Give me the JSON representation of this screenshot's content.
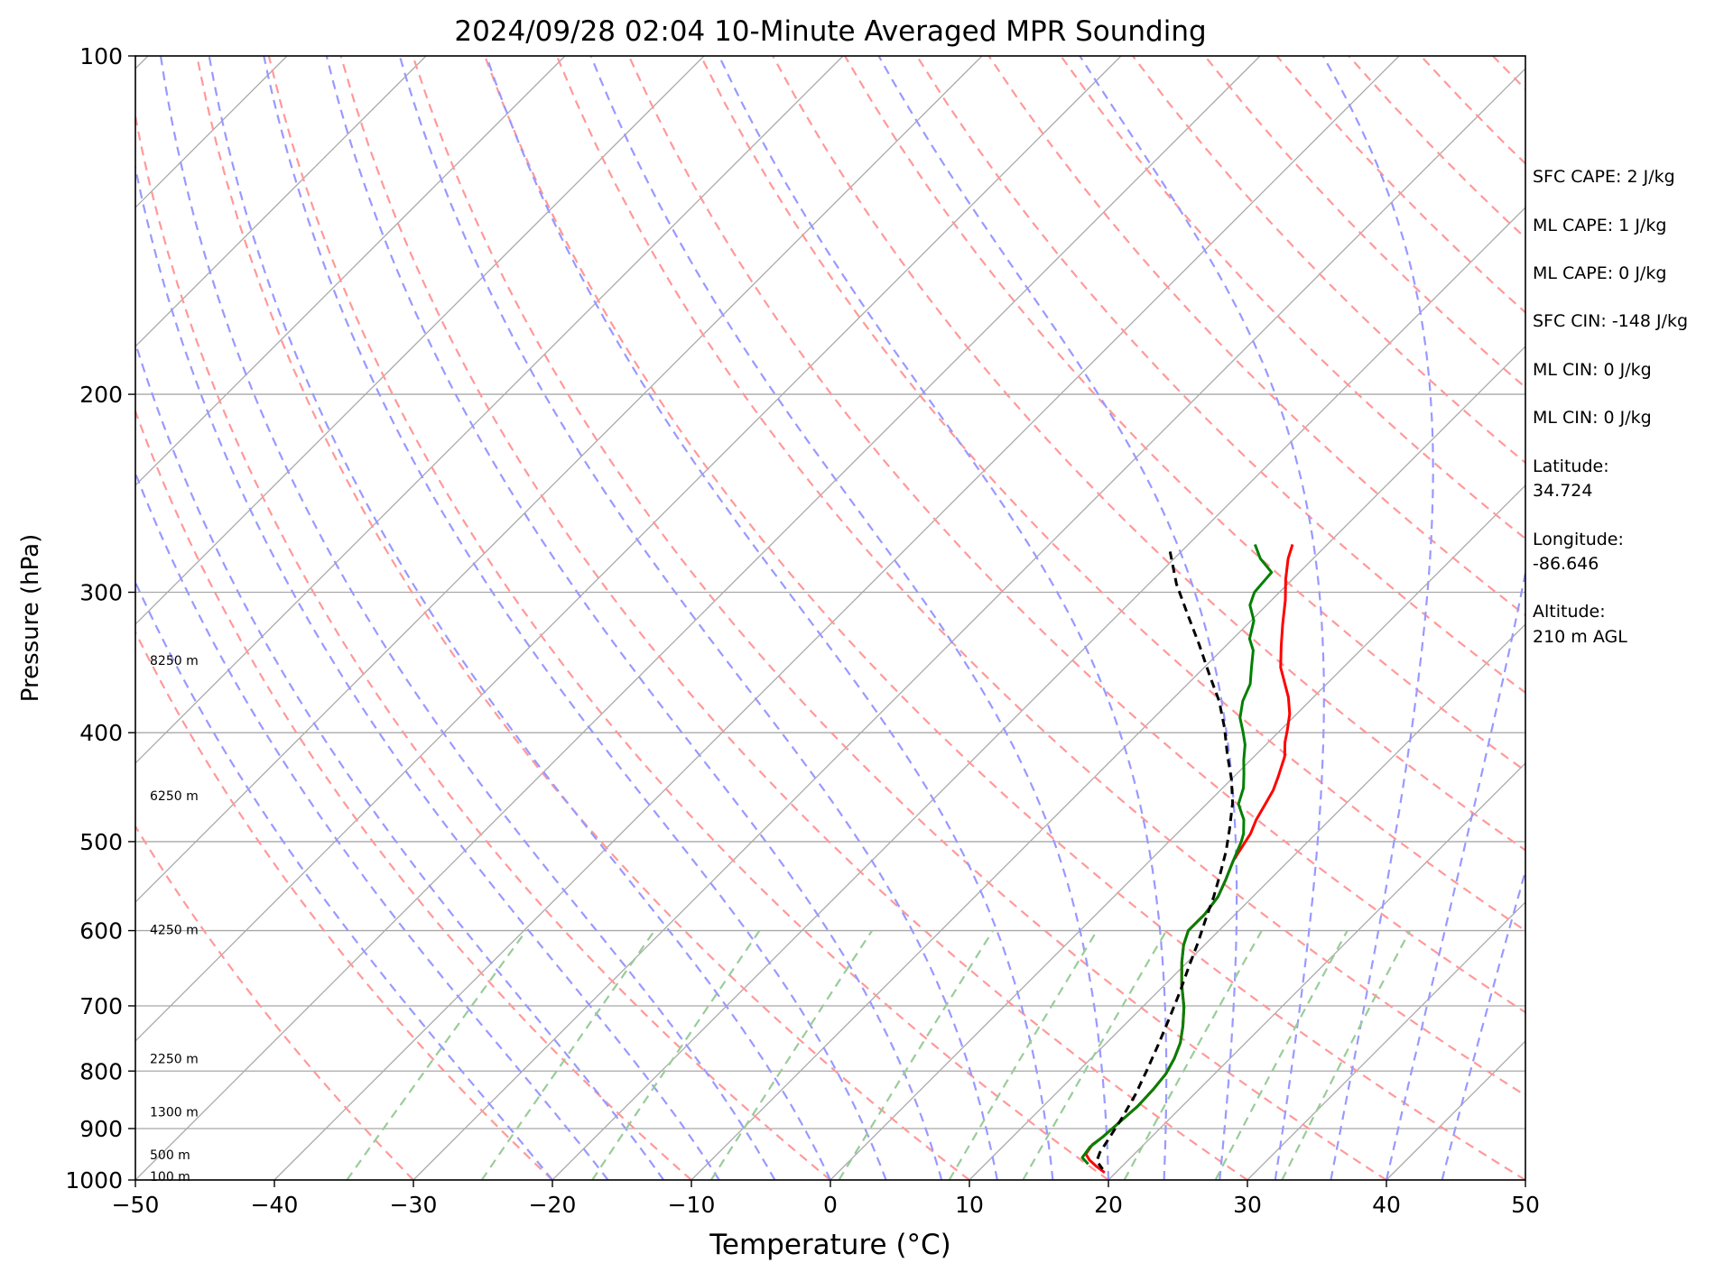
{
  "chart_data": {
    "type": "line",
    "title": "2024/09/28 02:04 10-Minute Averaged MPR Sounding",
    "xlabel": "Temperature (°C)",
    "ylabel": "Pressure (hPa)",
    "xlim": [
      -50,
      50
    ],
    "ylim": [
      1000,
      100
    ],
    "y_scale": "log",
    "skew": "skew-T log-p",
    "grid": true,
    "x_ticks": [
      -50,
      -40,
      -30,
      -20,
      -10,
      0,
      10,
      20,
      30,
      40,
      50
    ],
    "y_ticks": [
      100,
      200,
      300,
      400,
      500,
      600,
      700,
      800,
      900,
      1000
    ],
    "x_tick_labels": [
      "−50",
      "−40",
      "−30",
      "−20",
      "−10",
      "0",
      "10",
      "20",
      "30",
      "40",
      "50"
    ],
    "y_tick_labels": [
      "100",
      "200",
      "300",
      "400",
      "500",
      "600",
      "700",
      "800",
      "900",
      "1000"
    ],
    "height_labels": [
      {
        "label": "8250 m",
        "pressure": 345
      },
      {
        "label": "6250 m",
        "pressure": 455
      },
      {
        "label": "4250 m",
        "pressure": 599
      },
      {
        "label": "2250 m",
        "pressure": 780
      },
      {
        "label": "1300 m",
        "pressure": 870
      },
      {
        "label": "500 m",
        "pressure": 950
      },
      {
        "label": "100 m",
        "pressure": 993
      }
    ],
    "series": [
      {
        "color": "#ff0000",
        "points": [
          [
            -12.5,
            272
          ],
          [
            -11.8,
            280
          ],
          [
            -10.5,
            292
          ],
          [
            -9,
            305
          ],
          [
            -7.5,
            320
          ],
          [
            -6,
            335
          ],
          [
            -4.5,
            350
          ],
          [
            -3,
            362
          ],
          [
            -1.8,
            372
          ],
          [
            -0.5,
            385
          ],
          [
            0.5,
            398
          ],
          [
            1.2,
            408
          ],
          [
            2.2,
            420
          ],
          [
            3.2,
            438
          ],
          [
            3.8,
            450
          ],
          [
            4.2,
            462
          ],
          [
            4.7,
            478
          ],
          [
            5.3,
            492
          ],
          [
            5.5,
            500
          ],
          [
            6,
            520
          ],
          [
            6.8,
            540
          ],
          [
            7.5,
            560
          ],
          [
            7.8,
            580
          ],
          [
            7.8,
            600
          ],
          [
            8.5,
            618
          ],
          [
            9.6,
            640
          ],
          [
            11.2,
            670
          ],
          [
            13,
            702
          ],
          [
            14.3,
            730
          ],
          [
            15.3,
            755
          ],
          [
            16,
            780
          ],
          [
            16.5,
            805
          ],
          [
            16.7,
            830
          ],
          [
            16.8,
            860
          ],
          [
            16.6,
            895
          ],
          [
            16.5,
            915
          ],
          [
            16.3,
            930
          ],
          [
            16.5,
            948
          ],
          [
            17.2,
            960
          ],
          [
            18.2,
            973
          ],
          [
            19.2,
            985
          ]
        ]
      },
      {
        "color": "#008000",
        "points": [
          [
            -15.2,
            272
          ],
          [
            -13.8,
            280
          ],
          [
            -12,
            288
          ],
          [
            -11.8,
            300
          ],
          [
            -11.2,
            308
          ],
          [
            -9.8,
            318
          ],
          [
            -8.8,
            330
          ],
          [
            -7.7,
            338
          ],
          [
            -6.6,
            350
          ],
          [
            -5.5,
            362
          ],
          [
            -4.8,
            375
          ],
          [
            -3.8,
            388
          ],
          [
            -2.5,
            400
          ],
          [
            -1.5,
            410
          ],
          [
            -0.5,
            423
          ],
          [
            0.5,
            435
          ],
          [
            1.5,
            448
          ],
          [
            2.3,
            463
          ],
          [
            3.8,
            478
          ],
          [
            4.8,
            492
          ],
          [
            5.2,
            500
          ],
          [
            6,
            520
          ],
          [
            6.8,
            540
          ],
          [
            7.5,
            560
          ],
          [
            7.8,
            580
          ],
          [
            7.8,
            600
          ],
          [
            8.5,
            618
          ],
          [
            9.6,
            640
          ],
          [
            11.2,
            670
          ],
          [
            13,
            702
          ],
          [
            14.3,
            730
          ],
          [
            15.3,
            755
          ],
          [
            16,
            780
          ],
          [
            16.5,
            805
          ],
          [
            16.7,
            830
          ],
          [
            16.8,
            860
          ],
          [
            16.6,
            895
          ],
          [
            16.5,
            915
          ],
          [
            16.3,
            935
          ],
          [
            16.5,
            955
          ],
          [
            17.4,
            968
          ]
        ]
      },
      {
        "color": "#000000",
        "dashed": true,
        "points": [
          [
            -20.8,
            276
          ],
          [
            -18,
            295
          ],
          [
            -15,
            314
          ],
          [
            -12,
            334
          ],
          [
            -9,
            356
          ],
          [
            -6.5,
            375
          ],
          [
            -4.2,
            396
          ],
          [
            -2.1,
            418
          ],
          [
            0,
            440
          ],
          [
            1.8,
            462
          ],
          [
            3.5,
            488
          ],
          [
            4.8,
            510
          ],
          [
            6,
            534
          ],
          [
            7.2,
            560
          ],
          [
            8.3,
            588
          ],
          [
            9.4,
            616
          ],
          [
            10.4,
            645
          ],
          [
            11.6,
            680
          ],
          [
            12.8,
            720
          ],
          [
            13.9,
            760
          ],
          [
            14.9,
            800
          ],
          [
            15.8,
            840
          ],
          [
            16.5,
            880
          ],
          [
            17,
            915
          ],
          [
            17.4,
            945
          ],
          [
            17.8,
            962
          ],
          [
            18.8,
            978
          ]
        ]
      }
    ]
  },
  "annotations": [
    "SFC CAPE: 2 J/kg",
    "ML CAPE: 1 J/kg",
    "ML CAPE: 0 J/kg",
    "SFC CIN: -148 J/kg",
    "ML CIN: 0 J/kg",
    "ML CIN: 0 J/kg",
    "Latitude:",
    "34.724",
    "Longitude:",
    "-86.646",
    "Altitude:",
    "210 m AGL"
  ],
  "colors": {
    "isotherm": "#a8a8a8",
    "isobar": "#a8a8a8",
    "dry_adiabat": "#ff9999",
    "moist_adiabat": "#9999ff",
    "mixing_ratio": "#99cc99"
  }
}
